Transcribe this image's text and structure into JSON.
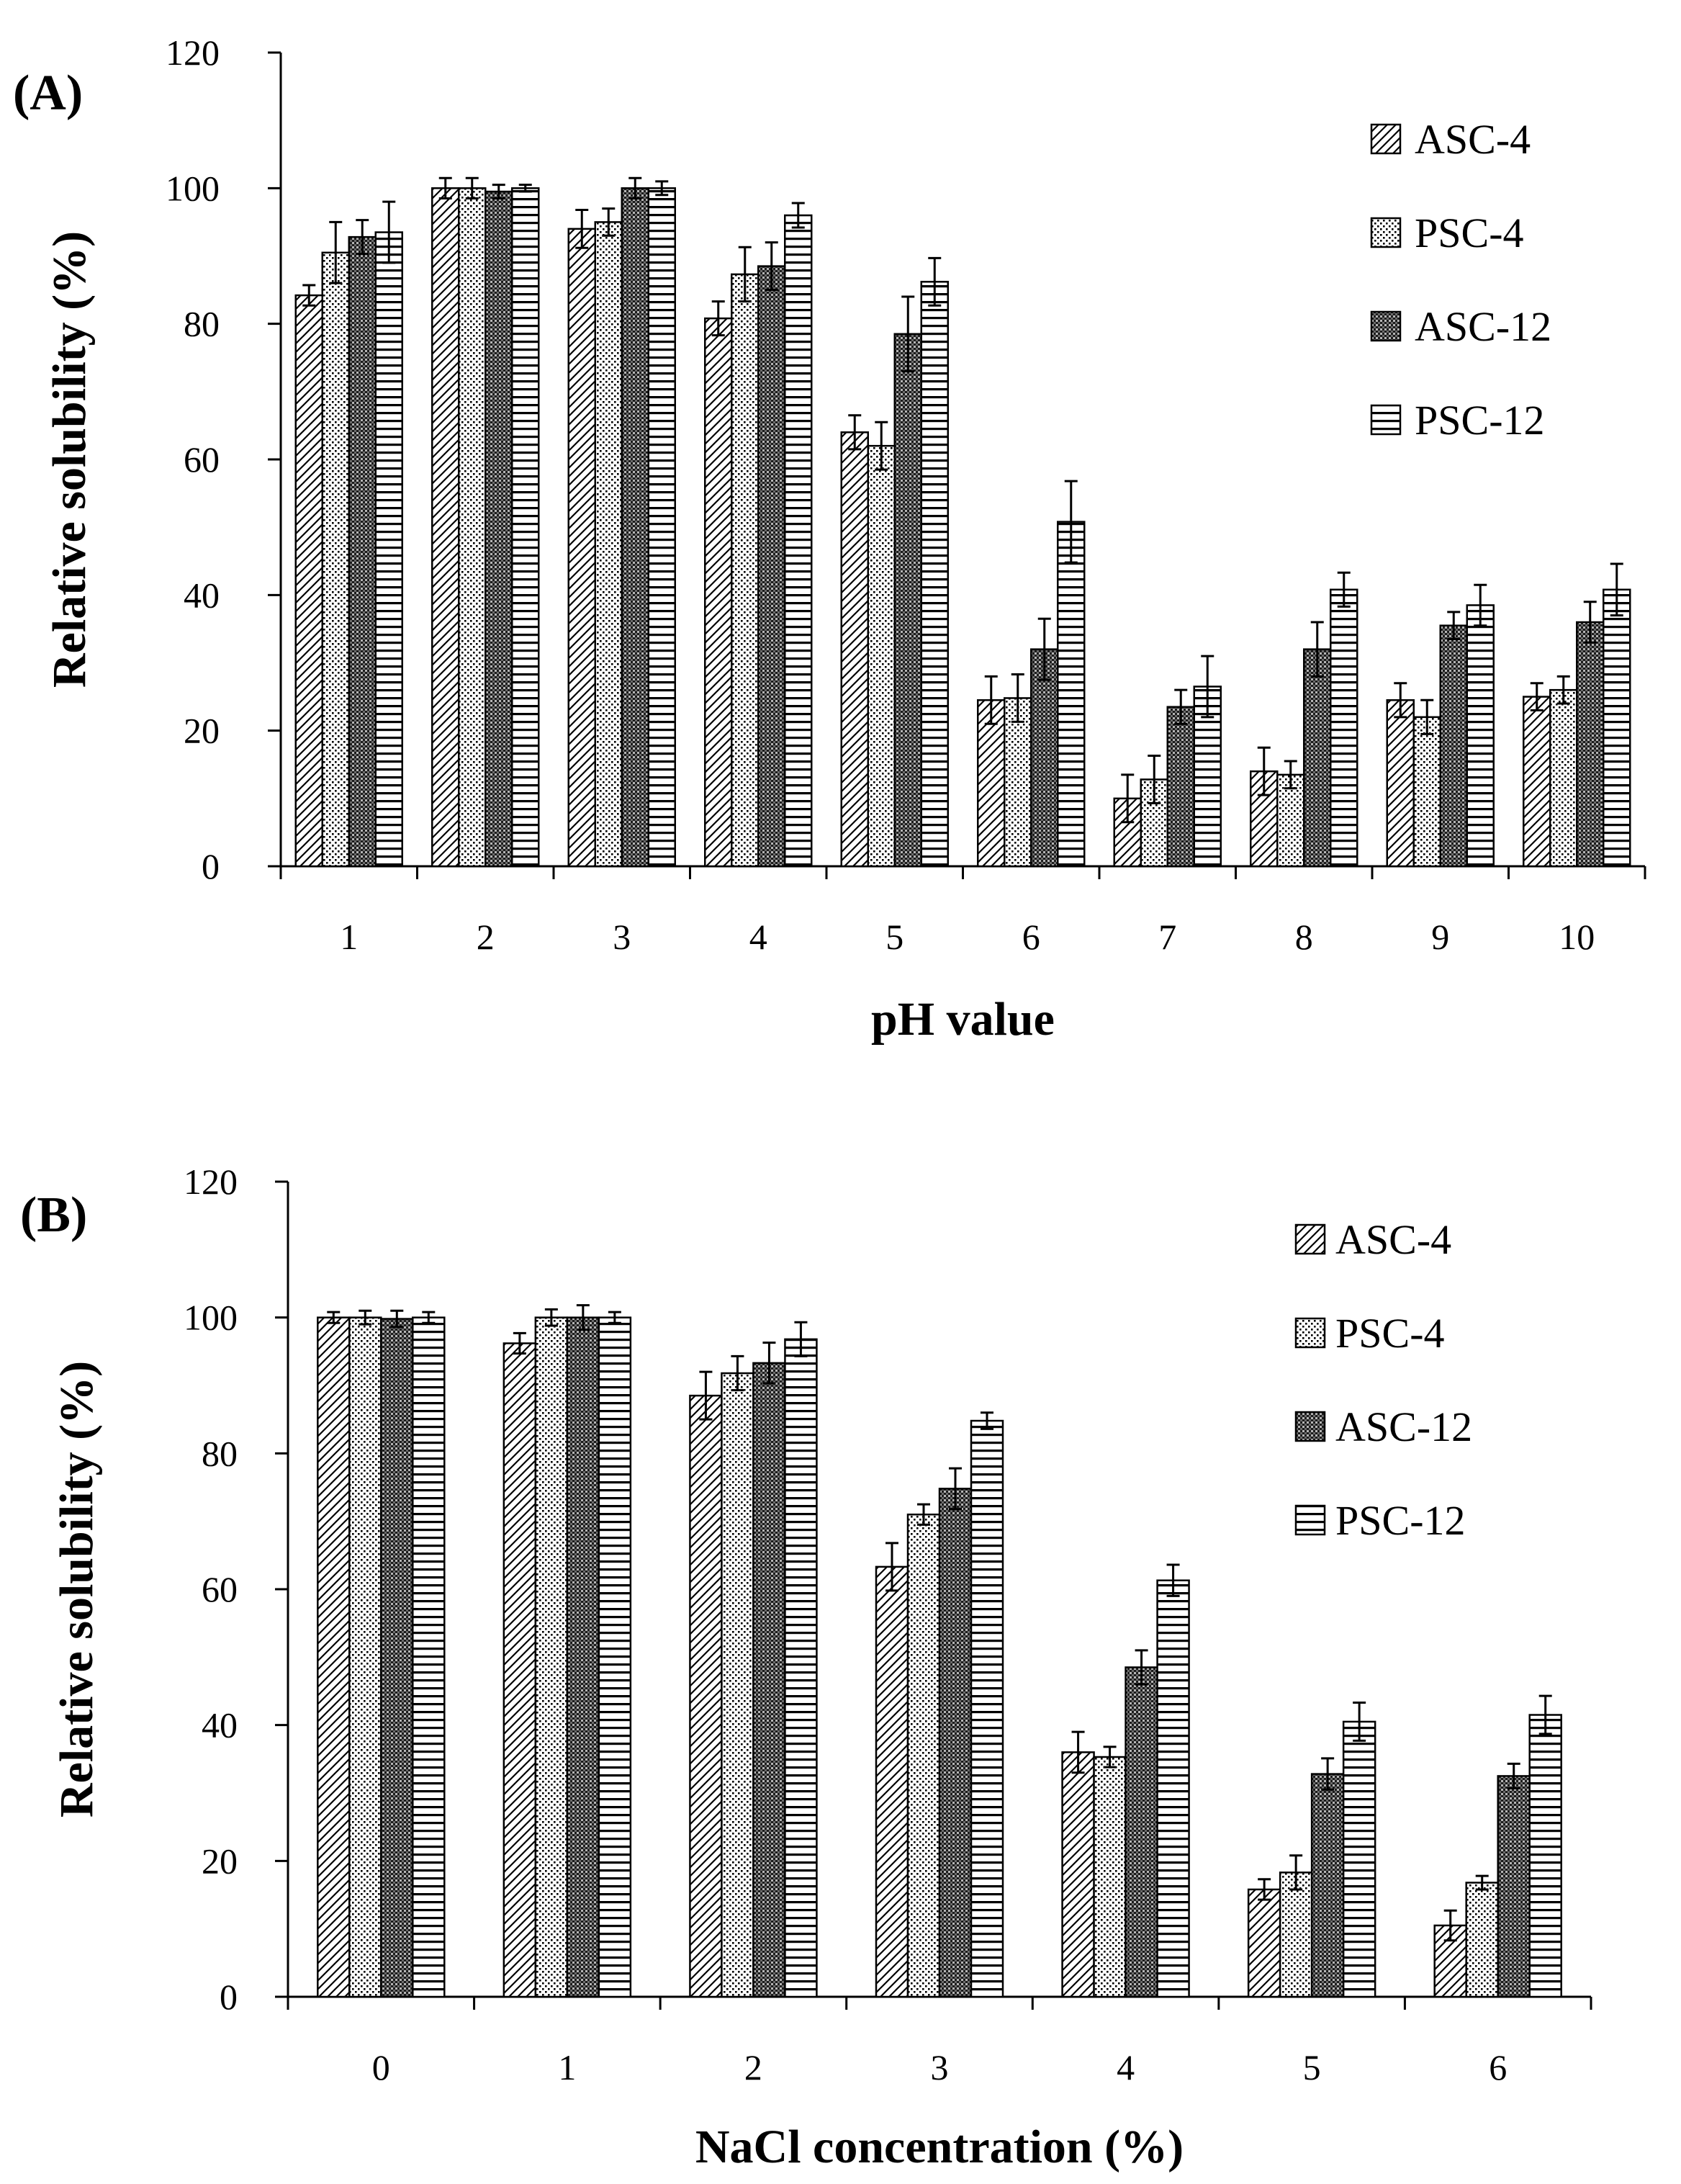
{
  "chart_data": [
    {
      "type": "bar",
      "panel_label": "(A)",
      "xlabel": "pH value",
      "ylabel": "Relative solubility (%)",
      "ylim": [
        0,
        120
      ],
      "yticks": [
        "0",
        "20",
        "40",
        "60",
        "80",
        "100",
        "120"
      ],
      "categories": [
        "1",
        "2",
        "3",
        "4",
        "5",
        "6",
        "7",
        "8",
        "9",
        "10"
      ],
      "series": [
        {
          "name": "ASC-4",
          "pattern": "diagonal",
          "values": [
            84.2,
            100,
            94,
            80.8,
            64,
            24.5,
            10,
            14,
            24.5,
            25
          ],
          "errors": [
            1.5,
            1.5,
            2.8,
            2.5,
            2.5,
            3.5,
            3.5,
            3.5,
            2.5,
            2
          ]
        },
        {
          "name": "PSC-4",
          "pattern": "dots",
          "values": [
            90.5,
            100,
            95,
            87.3,
            62,
            24.8,
            12.8,
            13.5,
            22,
            26
          ],
          "errors": [
            4.5,
            1.5,
            2,
            4,
            3.5,
            3.5,
            3.5,
            2,
            2.5,
            2
          ]
        },
        {
          "name": "ASC-12",
          "pattern": "checker",
          "values": [
            92.8,
            99.5,
            100,
            88.5,
            78.5,
            32,
            23.5,
            32,
            35.5,
            36
          ],
          "errors": [
            2.5,
            1,
            1.5,
            3.5,
            5.5,
            4.5,
            2.5,
            4,
            2,
            3
          ]
        },
        {
          "name": "PSC-12",
          "pattern": "horizontal",
          "values": [
            93.5,
            100,
            100,
            96,
            86.2,
            50.8,
            26.5,
            40.8,
            38.5,
            40.8
          ],
          "errors": [
            4.5,
            0.5,
            1,
            1.8,
            3.5,
            6,
            4.5,
            2.5,
            3,
            3.8
          ]
        }
      ],
      "legend_position": "top-right",
      "grid": false
    },
    {
      "type": "bar",
      "panel_label": "(B)",
      "xlabel": "NaCl concentration (%)",
      "ylabel": "Relative solubility (%)",
      "ylim": [
        0,
        120
      ],
      "yticks": [
        "0",
        "20",
        "40",
        "60",
        "80",
        "100",
        "120"
      ],
      "categories": [
        "0",
        "1",
        "2",
        "3",
        "4",
        "5",
        "6"
      ],
      "series": [
        {
          "name": "ASC-4",
          "pattern": "diagonal",
          "values": [
            100,
            96.2,
            88.5,
            63.3,
            36,
            15.8,
            10.5
          ],
          "errors": [
            0.8,
            1.5,
            3.5,
            3.5,
            3,
            1.5,
            2.2
          ]
        },
        {
          "name": "PSC-4",
          "pattern": "dots",
          "values": [
            100,
            100,
            91.8,
            71,
            35.3,
            18.3,
            16.8
          ],
          "errors": [
            1,
            1.2,
            2.5,
            1.5,
            1.5,
            2.5,
            1
          ]
        },
        {
          "name": "ASC-12",
          "pattern": "checker",
          "values": [
            99.8,
            100,
            93.3,
            74.8,
            48.5,
            32.8,
            32.5
          ],
          "errors": [
            1.2,
            1.8,
            3,
            3,
            2.5,
            2.3,
            1.8
          ]
        },
        {
          "name": "PSC-12",
          "pattern": "horizontal",
          "values": [
            100,
            100,
            96.8,
            84.8,
            61.3,
            40.5,
            41.5
          ],
          "errors": [
            0.8,
            0.8,
            2.5,
            1.2,
            2.3,
            2.8,
            2.8
          ]
        }
      ],
      "legend_position": "top-right",
      "grid": false
    }
  ]
}
